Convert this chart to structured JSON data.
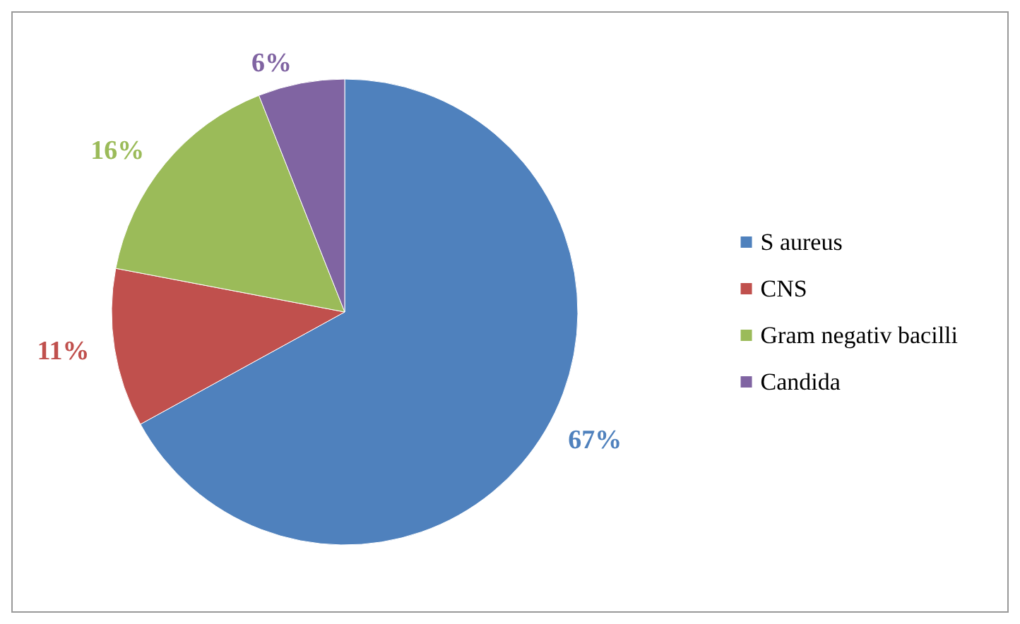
{
  "chart_data": {
    "type": "pie",
    "categories": [
      "S aureus",
      "CNS",
      "Gram negativ bacilli",
      "Candida"
    ],
    "values": [
      67,
      11,
      16,
      6
    ],
    "colors": [
      "#4f81bd",
      "#c0504d",
      "#9bbb59",
      "#8064a2"
    ],
    "value_labels": [
      "67%",
      "11%",
      "16%",
      "6%"
    ],
    "legend": "right"
  }
}
